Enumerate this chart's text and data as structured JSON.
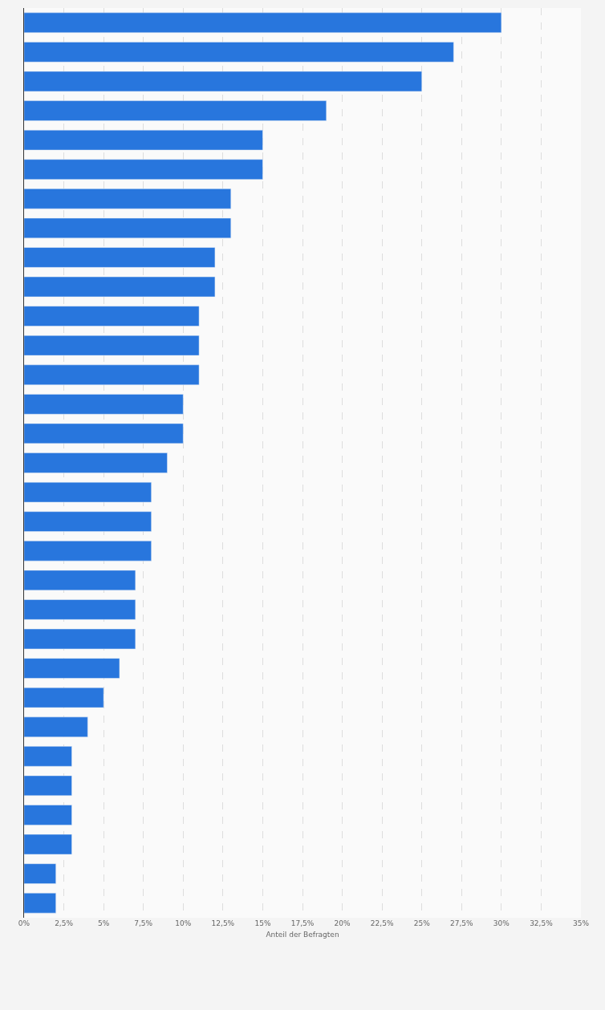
{
  "chart_data": {
    "type": "bar",
    "orientation": "horizontal",
    "xlabel": "Anteil der Befragten",
    "categories": [
      null,
      null,
      null,
      null,
      null,
      null,
      null,
      null,
      null,
      null,
      null,
      null,
      null,
      null,
      null,
      null,
      null,
      null,
      null,
      null,
      null,
      null,
      null,
      null,
      null,
      null,
      null,
      null,
      null,
      null,
      null
    ],
    "values": [
      30,
      27,
      25,
      19,
      15,
      15,
      13,
      13,
      12,
      12,
      11,
      11,
      11,
      10,
      10,
      9,
      8,
      8,
      8,
      7,
      7,
      7,
      6,
      5,
      4,
      3,
      3,
      3,
      3,
      2,
      2
    ],
    "color": "#2876dd",
    "xlim": [
      0,
      35
    ],
    "xticks": [
      {
        "value": 0,
        "label": "0%"
      },
      {
        "value": 2.5,
        "label": "2,5%"
      },
      {
        "value": 5,
        "label": "5%"
      },
      {
        "value": 7.5,
        "label": "7,5%"
      },
      {
        "value": 10,
        "label": "10%"
      },
      {
        "value": 12.5,
        "label": "12,5%"
      },
      {
        "value": 15,
        "label": "15%"
      },
      {
        "value": 17.5,
        "label": "17,5%"
      },
      {
        "value": 20,
        "label": "20%"
      },
      {
        "value": 22.5,
        "label": "22,5%"
      },
      {
        "value": 25,
        "label": "25%"
      },
      {
        "value": 27.5,
        "label": "27,5%"
      },
      {
        "value": 30,
        "label": "30%"
      },
      {
        "value": 32.5,
        "label": "32,5%"
      },
      {
        "value": 35,
        "label": "35%"
      }
    ],
    "grid": "x",
    "tick_labels": "x"
  }
}
